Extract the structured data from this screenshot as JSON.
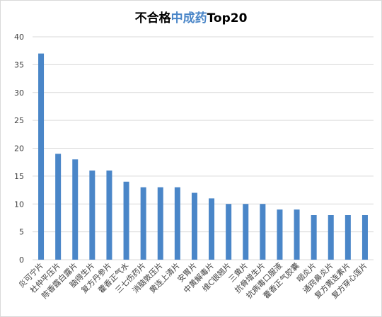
{
  "chart_data": {
    "type": "bar",
    "title_parts": [
      {
        "text": "不合格",
        "color": "#000000"
      },
      {
        "text": "中成药",
        "color": "#4a86c8"
      },
      {
        "text": "Top20",
        "color": "#000000"
      }
    ],
    "categories": [
      "炎可宁片",
      "杜仲平压片",
      "陈香露白露片",
      "脑得生片",
      "复方丹参片",
      "藿香正气水",
      "三七伤药片",
      "消脑敦压片",
      "黄连上清片",
      "安胃片",
      "中黄解毒片",
      "维C银翘片",
      "三黄片",
      "抗骨增生片",
      "抗病毒口服液",
      "藿香正气胶囊",
      "咽炎片",
      "通窍鼻炎片",
      "复方黄连素片",
      "复方穿心莲片"
    ],
    "values": [
      37,
      19,
      18,
      16,
      16,
      14,
      13,
      13,
      13,
      12,
      11,
      10,
      10,
      10,
      9,
      9,
      8,
      8,
      8,
      8
    ],
    "y_ticks": [
      "0",
      "5",
      "10",
      "15",
      "20",
      "25",
      "30",
      "35",
      "40"
    ],
    "ylim": [
      0,
      40
    ],
    "grid": true,
    "bar_color": "#4a86c8",
    "grid_color": "#d9d9d9"
  }
}
